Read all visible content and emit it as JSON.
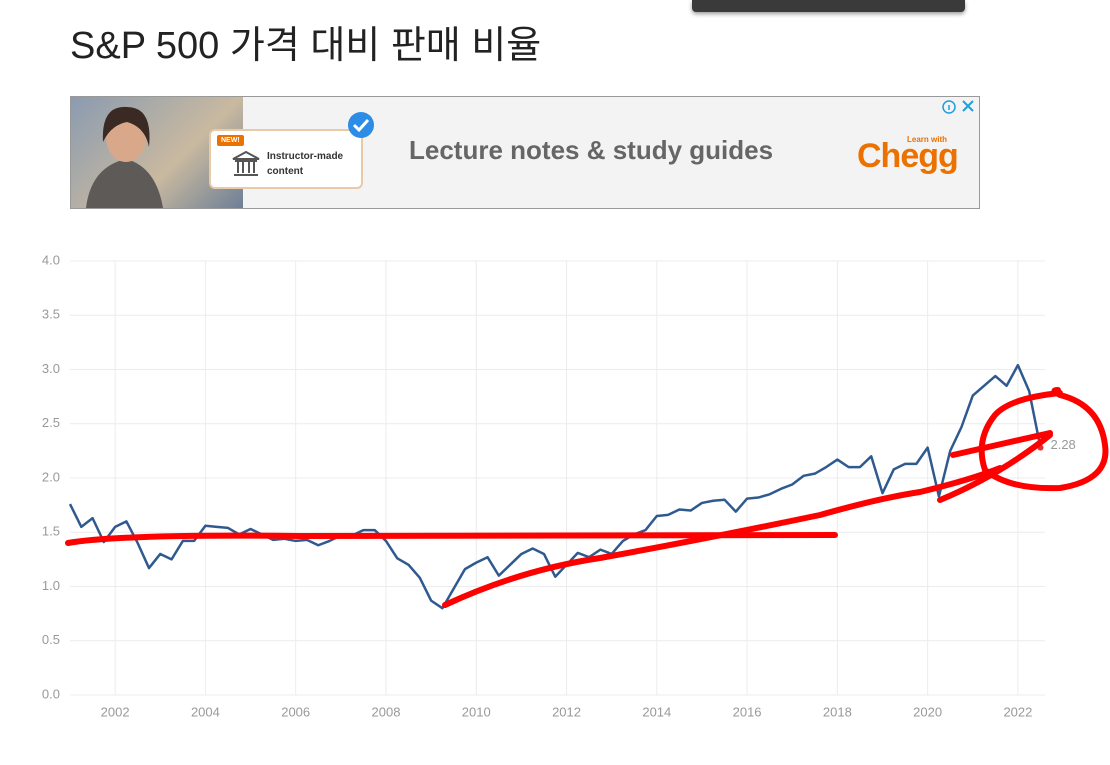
{
  "header": {
    "title": "S&P 500 가격 대비 판매 비율"
  },
  "ad": {
    "badge": "NEW!",
    "card_text": "Instructor-made content",
    "headline": "Lecture notes & study guides",
    "brand_tagline": "Learn with",
    "brand": "Chegg"
  },
  "chart_data": {
    "type": "line",
    "x": [
      2001,
      2001.25,
      2001.5,
      2001.75,
      2002,
      2002.25,
      2002.5,
      2002.75,
      2003,
      2003.25,
      2003.5,
      2003.75,
      2004,
      2004.25,
      2004.5,
      2004.75,
      2005,
      2005.25,
      2005.5,
      2005.75,
      2006,
      2006.25,
      2006.5,
      2006.75,
      2007,
      2007.25,
      2007.5,
      2007.75,
      2008,
      2008.25,
      2008.5,
      2008.75,
      2009,
      2009.25,
      2009.5,
      2009.75,
      2010,
      2010.25,
      2010.5,
      2010.75,
      2011,
      2011.25,
      2011.5,
      2011.75,
      2012,
      2012.25,
      2012.5,
      2012.75,
      2013,
      2013.25,
      2013.5,
      2013.75,
      2014,
      2014.25,
      2014.5,
      2014.75,
      2015,
      2015.25,
      2015.5,
      2015.75,
      2016,
      2016.25,
      2016.5,
      2016.75,
      2017,
      2017.25,
      2017.5,
      2017.75,
      2018,
      2018.25,
      2018.5,
      2018.75,
      2019,
      2019.25,
      2019.5,
      2019.75,
      2020,
      2020.25,
      2020.5,
      2020.75,
      2021,
      2021.25,
      2021.5,
      2021.75,
      2022,
      2022.25,
      2022.5
    ],
    "series": [
      {
        "color": "#2f5a8f",
        "values": [
          1.76,
          1.55,
          1.63,
          1.41,
          1.55,
          1.6,
          1.4,
          1.17,
          1.3,
          1.25,
          1.42,
          1.42,
          1.56,
          1.55,
          1.54,
          1.48,
          1.53,
          1.48,
          1.43,
          1.44,
          1.42,
          1.43,
          1.38,
          1.42,
          1.47,
          1.47,
          1.52,
          1.52,
          1.42,
          1.26,
          1.2,
          1.08,
          0.87,
          0.8,
          0.98,
          1.16,
          1.22,
          1.27,
          1.1,
          1.2,
          1.3,
          1.35,
          1.3,
          1.09,
          1.2,
          1.31,
          1.27,
          1.34,
          1.3,
          1.42,
          1.48,
          1.52,
          1.65,
          1.66,
          1.71,
          1.7,
          1.77,
          1.79,
          1.8,
          1.69,
          1.81,
          1.82,
          1.85,
          1.9,
          1.94,
          2.02,
          2.04,
          2.1,
          2.17,
          2.1,
          2.1,
          2.2,
          1.86,
          2.08,
          2.13,
          2.13,
          2.28,
          1.83,
          2.25,
          2.47,
          2.76,
          2.85,
          2.94,
          2.85,
          3.04,
          2.8,
          2.28
        ]
      }
    ],
    "xlim": [
      2001,
      2022.6
    ],
    "xticks": [
      2002,
      2004,
      2006,
      2008,
      2010,
      2012,
      2014,
      2016,
      2018,
      2020,
      2022
    ],
    "ylim": [
      0,
      4
    ],
    "yticks": [
      {
        "value": 0,
        "label": "0.0"
      },
      0.5,
      {
        "value": 1,
        "label": "1.0"
      },
      1.5,
      {
        "value": 2,
        "label": "2.0"
      },
      2.5,
      {
        "value": 3,
        "label": "3.0"
      },
      3.5,
      {
        "value": 4,
        "label": "4.0"
      }
    ],
    "grid": true
  }
}
